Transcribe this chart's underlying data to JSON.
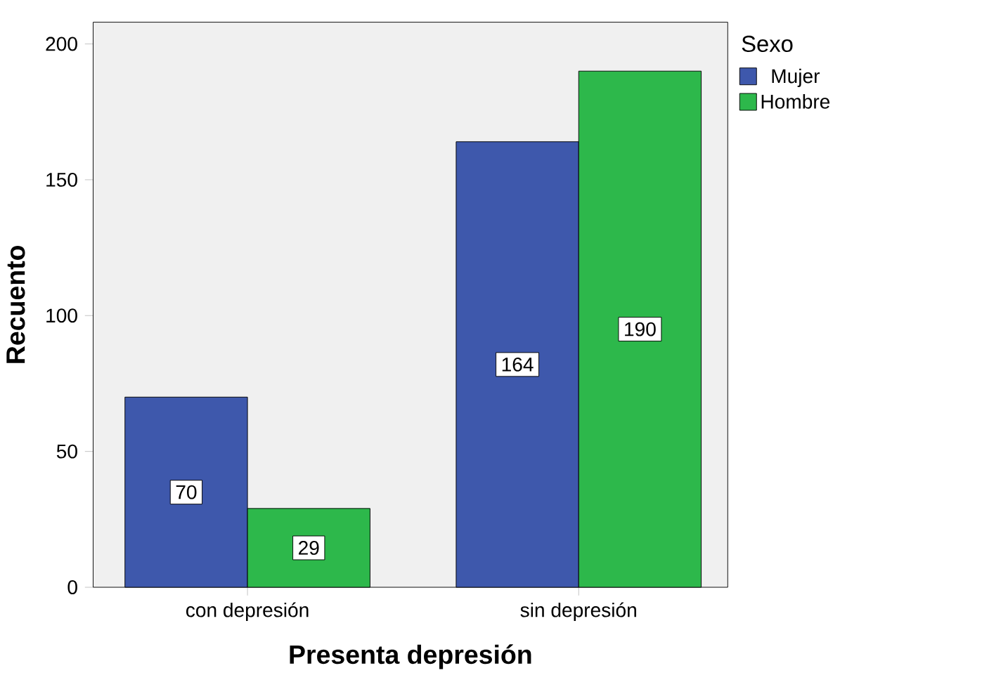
{
  "chart_data": {
    "type": "bar",
    "xlabel": "Presenta depresión",
    "ylabel": "Recuento",
    "legend_title": "Sexo",
    "categories": [
      "con depresión",
      "sin depresión"
    ],
    "series": [
      {
        "name": "Mujer",
        "color": "#3e58ac",
        "values": [
          70,
          164
        ]
      },
      {
        "name": "Hombre",
        "color": "#2db84b",
        "values": [
          29,
          190
        ]
      }
    ],
    "ylim": [
      0,
      208
    ],
    "yticks": [
      0,
      50,
      100,
      150,
      200
    ],
    "data_labels": true,
    "legend": "top right",
    "grid": false
  }
}
